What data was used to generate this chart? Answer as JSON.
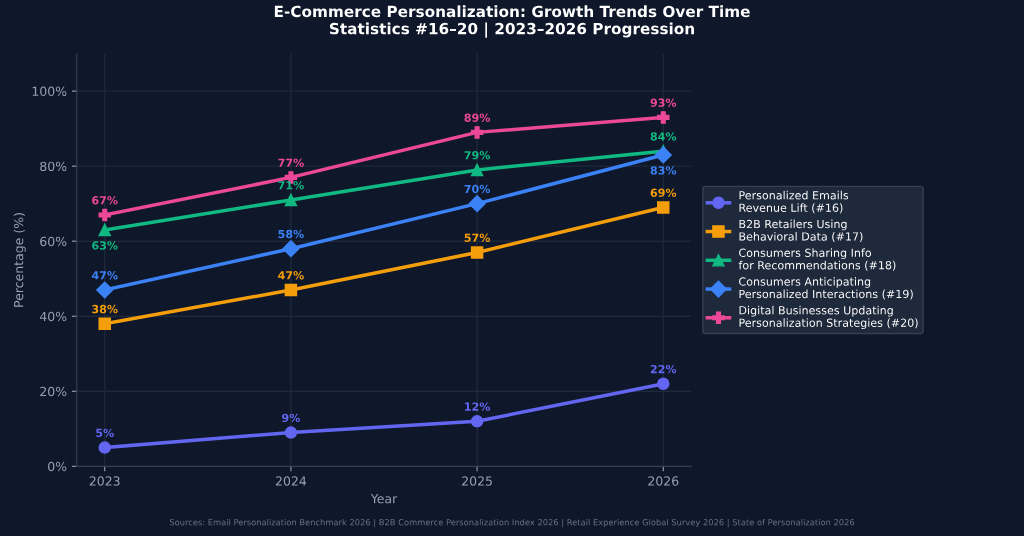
{
  "chart_data": {
    "type": "line",
    "title": "E-Commerce Personalization: Growth Trends Over Time\nStatistics #16–20 | 2023–2026 Progression",
    "xlabel": "Year",
    "ylabel": "Percentage (%)",
    "x": [
      2023,
      2024,
      2025,
      2026
    ],
    "xlim": [
      2022.85,
      2026.15
    ],
    "xticks": [
      2023,
      2024,
      2025,
      2026
    ],
    "ylim": [
      0,
      110
    ],
    "yticks": [
      {
        "value": 0,
        "label": "0%"
      },
      {
        "value": 20,
        "label": "20%"
      },
      {
        "value": 40,
        "label": "40%"
      },
      {
        "value": 60,
        "label": "60%"
      },
      {
        "value": 80,
        "label": "80%"
      },
      {
        "value": 100,
        "label": "100%"
      }
    ],
    "grid": true,
    "legend": "right",
    "line_style": "solid",
    "series": [
      {
        "name": "Personalized Emails\nRevenue Lift (#16)",
        "color": "#6366f1",
        "marker": "circle",
        "values": [
          5,
          9,
          12,
          22
        ],
        "value_labels": [
          "5%",
          "9%",
          "12%",
          "22%"
        ]
      },
      {
        "name": "B2B Retailers Using\nBehavioral Data (#17)",
        "color": "#f59e0b",
        "marker": "square",
        "values": [
          38,
          47,
          57,
          69
        ],
        "value_labels": [
          "38%",
          "47%",
          "57%",
          "69%"
        ]
      },
      {
        "name": "Consumers Sharing Info\nfor Recommendations (#18)",
        "color": "#10b981",
        "marker": "triangle",
        "values": [
          63,
          71,
          79,
          84
        ],
        "value_labels": [
          "63%",
          "71%",
          "79%",
          "84%"
        ]
      },
      {
        "name": "Consumers Anticipating\nPersonalized Interactions (#19)",
        "color": "#3b82f6",
        "marker": "diamond",
        "values": [
          47,
          58,
          70,
          83
        ],
        "value_labels": [
          "47%",
          "58%",
          "70%",
          "83%"
        ]
      },
      {
        "name": "Digital Businesses Updating\nPersonalization Strategies (#20)",
        "color": "#ec4899",
        "marker": "cross",
        "values": [
          67,
          77,
          89,
          93
        ],
        "value_labels": [
          "67%",
          "77%",
          "89%",
          "93%"
        ]
      }
    ],
    "annotations": [
      "Sources: Email Personalization Benchmark 2026 | B2B Commerce Personalization Index 2026 | Retail Experience Global Survey 2026 | State of Personalization 2026"
    ]
  }
}
